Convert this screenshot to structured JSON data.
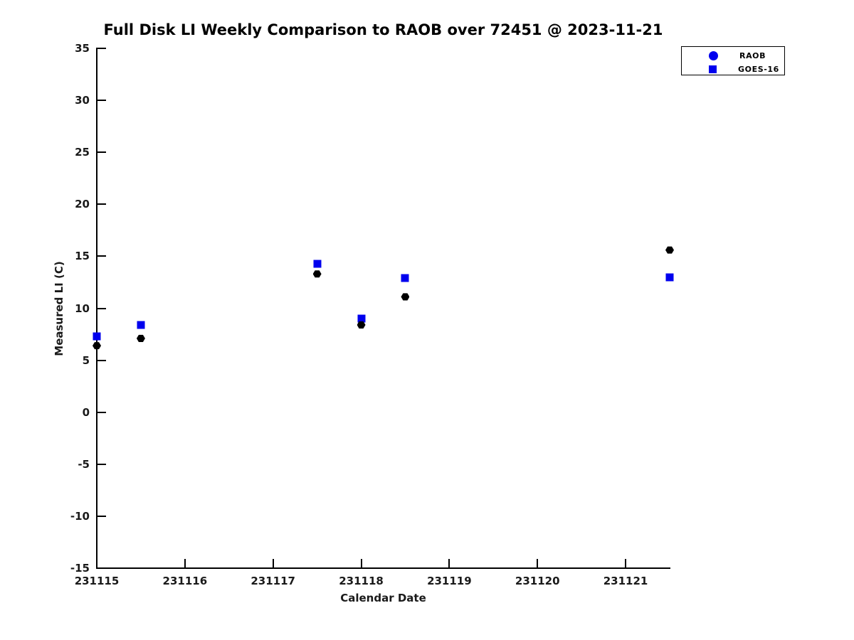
{
  "title": "Full Disk LI Weekly Comparison to RAOB over 72451 @ 2023-11-21",
  "chart_data": {
    "type": "scatter",
    "title": "Full Disk LI Weekly Comparison to RAOB over 72451 @ 2023-11-21",
    "xlabel": "Calendar Date",
    "ylabel": "Measured LI (C)",
    "xlim": [
      231115,
      231121.5
    ],
    "ylim": [
      -15,
      35
    ],
    "xticks": [
      231115,
      231116,
      231117,
      231118,
      231119,
      231120,
      231121
    ],
    "yticks": [
      -15,
      -10,
      -5,
      0,
      5,
      10,
      15,
      20,
      25,
      30,
      35
    ],
    "grid": false,
    "legend_position": "top-right",
    "colors": {
      "marker_blue": "#0000ee",
      "marker_black": "#000000",
      "axis": "#000000"
    },
    "series": [
      {
        "name": "RAOB",
        "marker": "hexagon",
        "color": "#000000",
        "legend_color": "#0000ee",
        "points": [
          [
            231115.0,
            6.4
          ],
          [
            231115.5,
            7.1
          ],
          [
            231117.5,
            13.3
          ],
          [
            231118.0,
            8.4
          ],
          [
            231118.5,
            11.1
          ],
          [
            231121.5,
            15.6
          ]
        ]
      },
      {
        "name": "GOES-16",
        "marker": "square",
        "color": "#0000ee",
        "legend_color": "#0000ee",
        "points": [
          [
            231115.0,
            7.3
          ],
          [
            231115.5,
            8.4
          ],
          [
            231117.5,
            14.3
          ],
          [
            231118.0,
            9.0
          ],
          [
            231118.5,
            12.9
          ],
          [
            231121.5,
            13.0
          ]
        ]
      }
    ]
  }
}
